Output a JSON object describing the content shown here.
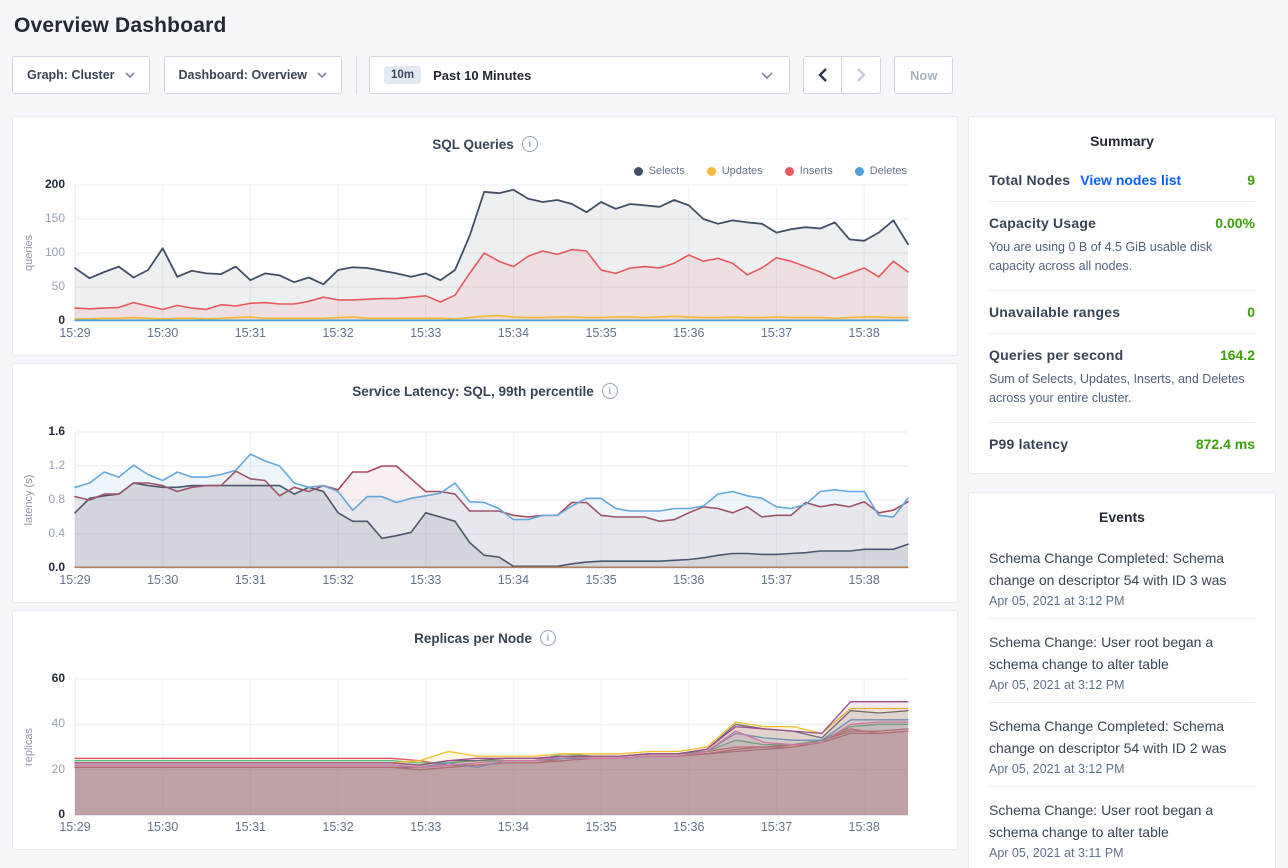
{
  "page": {
    "title": "Overview Dashboard"
  },
  "toolbar": {
    "graph_dropdown": "Graph: Cluster",
    "dashboard_dropdown": "Dashboard: Overview",
    "time_badge": "10m",
    "time_label": "Past 10 Minutes",
    "now_button": "Now"
  },
  "colors": {
    "accent_green": "#3aa106",
    "link_blue": "#0b5fff",
    "selects": "#425066",
    "updates": "#f2bb3a",
    "inserts": "#e8595f",
    "deletes": "#4f9fd8"
  },
  "summary": {
    "title": "Summary",
    "total_nodes_label": "Total Nodes",
    "view_nodes_link": "View nodes list",
    "total_nodes_value": "9",
    "capacity_label": "Capacity Usage",
    "capacity_value": "0.00%",
    "capacity_desc": "You are using 0 B of 4.5 GiB usable disk capacity across all nodes.",
    "unavailable_label": "Unavailable ranges",
    "unavailable_value": "0",
    "qps_label": "Queries per second",
    "qps_value": "164.2",
    "qps_desc": "Sum of Selects, Updates, Inserts, and Deletes across your entire cluster.",
    "p99_label": "P99 latency",
    "p99_value": "872.4 ms"
  },
  "events": {
    "title": "Events",
    "items": [
      {
        "text": "Schema Change Completed: Schema change on descriptor 54 with ID 3 was",
        "timestamp": "Apr 05, 2021 at 3:12 PM"
      },
      {
        "text": "Schema Change: User root began a schema change to alter table",
        "timestamp": "Apr 05, 2021 at 3:12 PM"
      },
      {
        "text": "Schema Change Completed: Schema change on descriptor 54 with ID 2 was",
        "timestamp": "Apr 05, 2021 at 3:12 PM"
      },
      {
        "text": "Schema Change: User root began a schema change to alter table",
        "timestamp": "Apr 05, 2021 at 3:11 PM"
      }
    ]
  },
  "chart_data": [
    {
      "type": "line",
      "title": "SQL Queries",
      "ylabel": "queries",
      "ylim": [
        0,
        200
      ],
      "yticks": [
        {
          "v": 0,
          "label": "0"
        },
        {
          "v": 50,
          "label": "50"
        },
        {
          "v": 100,
          "label": "100"
        },
        {
          "v": 150,
          "label": "150"
        },
        {
          "v": 200,
          "label": "200"
        }
      ],
      "x_tick_labels": [
        "15:29",
        "15:30",
        "15:31",
        "15:32",
        "15:33",
        "15:34",
        "15:35",
        "15:36",
        "15:37",
        "15:38"
      ],
      "x_total_minutes": 9.5,
      "grid": true,
      "legend_position": "top-right",
      "draw_order": [
        0,
        2,
        1,
        3
      ],
      "series": [
        {
          "name": "Selects",
          "color": "#425066",
          "fill_opacity": 0.09,
          "stroke": 1.8,
          "values": [
            78,
            63,
            72,
            80,
            64,
            75,
            107,
            65,
            74,
            70,
            69,
            80,
            60,
            70,
            67,
            57,
            64,
            54,
            75,
            79,
            78,
            74,
            70,
            65,
            70,
            60,
            75,
            125,
            190,
            188,
            193,
            180,
            175,
            178,
            172,
            160,
            175,
            165,
            172,
            170,
            168,
            178,
            170,
            150,
            143,
            148,
            145,
            143,
            130,
            135,
            138,
            136,
            145,
            120,
            118,
            130,
            148,
            113
          ]
        },
        {
          "name": "Updates",
          "color": "#f2bb3a",
          "fill_opacity": 0.15,
          "stroke": 1.6,
          "values": [
            3,
            3,
            4,
            4,
            5,
            4,
            3,
            4,
            4,
            3,
            4,
            5,
            6,
            4,
            4,
            4,
            4,
            4,
            5,
            6,
            4,
            4,
            4,
            4,
            4,
            4,
            3,
            5,
            7,
            8,
            6,
            5,
            5,
            6,
            6,
            5,
            5,
            6,
            6,
            5,
            6,
            7,
            6,
            5,
            5,
            6,
            5,
            5,
            6,
            5,
            5,
            5,
            4,
            5,
            6,
            6,
            5,
            5
          ]
        },
        {
          "name": "Inserts",
          "color": "#e8595f",
          "fill_opacity": 0.1,
          "stroke": 1.6,
          "values": [
            19,
            18,
            19,
            20,
            27,
            22,
            17,
            23,
            19,
            17,
            24,
            22,
            26,
            27,
            25,
            25,
            29,
            35,
            31,
            31,
            32,
            33,
            33,
            35,
            37,
            28,
            38,
            70,
            100,
            88,
            80,
            95,
            103,
            98,
            105,
            103,
            75,
            70,
            78,
            80,
            78,
            85,
            97,
            88,
            92,
            85,
            68,
            78,
            93,
            88,
            80,
            72,
            62,
            70,
            78,
            65,
            88,
            72
          ]
        },
        {
          "name": "Deletes",
          "color": "#4f9fd8",
          "fill_opacity": 0.15,
          "stroke": 1.6,
          "flat": 1
        }
      ]
    },
    {
      "type": "line",
      "title": "Service Latency: SQL, 99th percentile",
      "ylabel": "latency (s)",
      "ylim": [
        0,
        1.6
      ],
      "yticks": [
        {
          "v": 0,
          "label": "0.0"
        },
        {
          "v": 0.4,
          "label": "0.4"
        },
        {
          "v": 0.8,
          "label": "0.8"
        },
        {
          "v": 1.2,
          "label": "1.2"
        },
        {
          "v": 1.6,
          "label": "1.6"
        }
      ],
      "x_tick_labels": [
        "15:29",
        "15:30",
        "15:31",
        "15:32",
        "15:33",
        "15:34",
        "15:35",
        "15:36",
        "15:37",
        "15:38"
      ],
      "x_total_minutes": 9.5,
      "grid": true,
      "legend_position": "none",
      "series": [
        {
          "name": "",
          "color": "#425066",
          "fill_opacity": 0.12,
          "stroke": 1.6,
          "values": [
            0.65,
            0.82,
            0.85,
            0.87,
            1.0,
            0.97,
            0.95,
            0.95,
            0.97,
            0.97,
            0.97,
            0.97,
            0.97,
            0.97,
            0.97,
            0.87,
            0.95,
            0.9,
            0.65,
            0.55,
            0.55,
            0.35,
            0.38,
            0.42,
            0.65,
            0.6,
            0.55,
            0.3,
            0.15,
            0.13,
            0.02,
            0.02,
            0.02,
            0.02,
            0.05,
            0.07,
            0.08,
            0.08,
            0.08,
            0.08,
            0.08,
            0.09,
            0.1,
            0.12,
            0.15,
            0.17,
            0.17,
            0.16,
            0.16,
            0.17,
            0.18,
            0.2,
            0.2,
            0.2,
            0.22,
            0.22,
            0.22,
            0.28
          ]
        },
        {
          "name": "",
          "color": "#a84a5e",
          "fill_opacity": 0.09,
          "stroke": 1.6,
          "values": [
            0.84,
            0.8,
            0.87,
            0.87,
            1.0,
            1.0,
            0.97,
            0.9,
            0.95,
            0.97,
            0.97,
            1.14,
            1.05,
            1.03,
            0.85,
            0.95,
            0.9,
            0.97,
            0.92,
            1.13,
            1.13,
            1.2,
            1.2,
            1.05,
            0.9,
            0.9,
            0.87,
            0.67,
            0.67,
            0.67,
            0.62,
            0.6,
            0.62,
            0.62,
            0.77,
            0.77,
            0.62,
            0.6,
            0.6,
            0.6,
            0.55,
            0.57,
            0.65,
            0.72,
            0.7,
            0.65,
            0.72,
            0.6,
            0.62,
            0.62,
            0.77,
            0.72,
            0.75,
            0.72,
            0.78,
            0.65,
            0.68,
            0.78
          ]
        },
        {
          "name": "",
          "color": "#64a9d9",
          "fill_opacity": 0.1,
          "stroke": 1.6,
          "values": [
            0.95,
            1.0,
            1.13,
            1.07,
            1.21,
            1.1,
            1.03,
            1.13,
            1.07,
            1.07,
            1.1,
            1.15,
            1.34,
            1.26,
            1.2,
            1.0,
            0.95,
            0.97,
            0.9,
            0.68,
            0.84,
            0.84,
            0.77,
            0.82,
            0.85,
            0.88,
            1.0,
            0.78,
            0.77,
            0.7,
            0.57,
            0.57,
            0.62,
            0.62,
            0.73,
            0.82,
            0.82,
            0.7,
            0.67,
            0.67,
            0.67,
            0.7,
            0.7,
            0.73,
            0.87,
            0.9,
            0.85,
            0.82,
            0.72,
            0.7,
            0.75,
            0.9,
            0.92,
            0.9,
            0.9,
            0.62,
            0.6,
            0.82
          ]
        },
        {
          "name": "",
          "color": "#b07a52",
          "fill_opacity": 0,
          "stroke": 1.4,
          "flat": 0.01
        }
      ]
    },
    {
      "type": "line",
      "title": "Replicas per Node",
      "ylabel": "replicas",
      "ylim": [
        0,
        60
      ],
      "yticks": [
        {
          "v": 0,
          "label": "0"
        },
        {
          "v": 20,
          "label": "20"
        },
        {
          "v": 40,
          "label": "40"
        },
        {
          "v": 60,
          "label": "60"
        }
      ],
      "x_tick_labels": [
        "15:29",
        "15:30",
        "15:31",
        "15:32",
        "15:33",
        "15:34",
        "15:35",
        "15:36",
        "15:37",
        "15:38"
      ],
      "x_total_minutes": 9.5,
      "grid": true,
      "legend_position": "none",
      "series": [
        {
          "name": "",
          "color": "#a0696b",
          "fill_opacity": 0.12,
          "stroke": 1.3,
          "values": [
            21,
            21,
            21,
            21,
            21,
            21,
            21,
            21,
            21,
            21,
            21,
            21,
            21,
            22,
            22,
            23,
            23,
            24,
            25,
            25,
            26,
            26,
            27,
            28,
            29,
            30,
            32,
            36,
            36,
            37
          ]
        },
        {
          "name": "",
          "color": "#c9566a",
          "fill_opacity": 0.12,
          "stroke": 1.3,
          "values": [
            21,
            21,
            21,
            21,
            21,
            21,
            21,
            21,
            21,
            21,
            21,
            21,
            20,
            21,
            22,
            23,
            23,
            24,
            25,
            25,
            26,
            26,
            27,
            29,
            30,
            31,
            33,
            37,
            37,
            38
          ]
        },
        {
          "name": "",
          "color": "#e5575f",
          "fill_opacity": 0.12,
          "stroke": 1.3,
          "values": [
            25,
            25,
            25,
            25,
            25,
            25,
            25,
            25,
            25,
            25,
            25,
            25,
            24,
            22,
            22,
            23,
            23,
            25,
            26,
            26,
            27,
            27,
            28,
            30,
            30,
            30,
            33,
            38,
            36,
            37
          ]
        },
        {
          "name": "",
          "color": "#4dbf7e",
          "fill_opacity": 0.12,
          "stroke": 1.3,
          "values": [
            24,
            24,
            24,
            24,
            24,
            24,
            24,
            24,
            24,
            24,
            24,
            24,
            23,
            23,
            24,
            24,
            24,
            27,
            26,
            26,
            27,
            27,
            28,
            33,
            31,
            31,
            33,
            39,
            40,
            40
          ]
        },
        {
          "name": "",
          "color": "#5c9bd6",
          "fill_opacity": 0.12,
          "stroke": 1.3,
          "values": [
            22,
            22,
            22,
            22,
            22,
            22,
            22,
            22,
            22,
            22,
            22,
            22,
            21,
            23,
            21,
            24,
            24,
            25,
            25,
            25,
            26,
            26,
            28,
            36,
            34,
            33,
            33,
            42,
            42,
            42
          ]
        },
        {
          "name": "",
          "color": "#e776bb",
          "fill_opacity": 0.12,
          "stroke": 1.3,
          "values": [
            22,
            22,
            22,
            22,
            22,
            22,
            22,
            22,
            22,
            22,
            22,
            22,
            21,
            22,
            23,
            24,
            24,
            26,
            25,
            25,
            26,
            26,
            28,
            37,
            32,
            31,
            32,
            40,
            41,
            41
          ]
        },
        {
          "name": "",
          "color": "#5a6378",
          "fill_opacity": 0.12,
          "stroke": 1.3,
          "values": [
            23,
            23,
            23,
            23,
            23,
            23,
            23,
            23,
            23,
            23,
            23,
            23,
            22,
            24,
            24,
            25,
            25,
            26,
            26,
            26,
            27,
            27,
            29,
            40,
            38,
            37,
            34,
            46,
            45,
            46
          ]
        },
        {
          "name": "",
          "color": "#f2be2c",
          "fill_opacity": 0.12,
          "stroke": 1.3,
          "values": [
            23,
            23,
            23,
            23,
            23,
            23,
            23,
            23,
            23,
            23,
            23,
            23,
            24,
            28,
            26,
            26,
            26,
            27,
            27,
            27,
            28,
            28,
            30,
            41,
            39,
            39,
            36,
            47,
            47,
            47
          ]
        },
        {
          "name": "",
          "color": "#9e4d8e",
          "fill_opacity": 0.12,
          "stroke": 1.3,
          "values": [
            23,
            23,
            23,
            23,
            23,
            23,
            23,
            23,
            23,
            23,
            23,
            23,
            22,
            24,
            25,
            25,
            25,
            26,
            26,
            26,
            27,
            27,
            29,
            39,
            38,
            37,
            36,
            50,
            50,
            50
          ]
        }
      ]
    }
  ]
}
